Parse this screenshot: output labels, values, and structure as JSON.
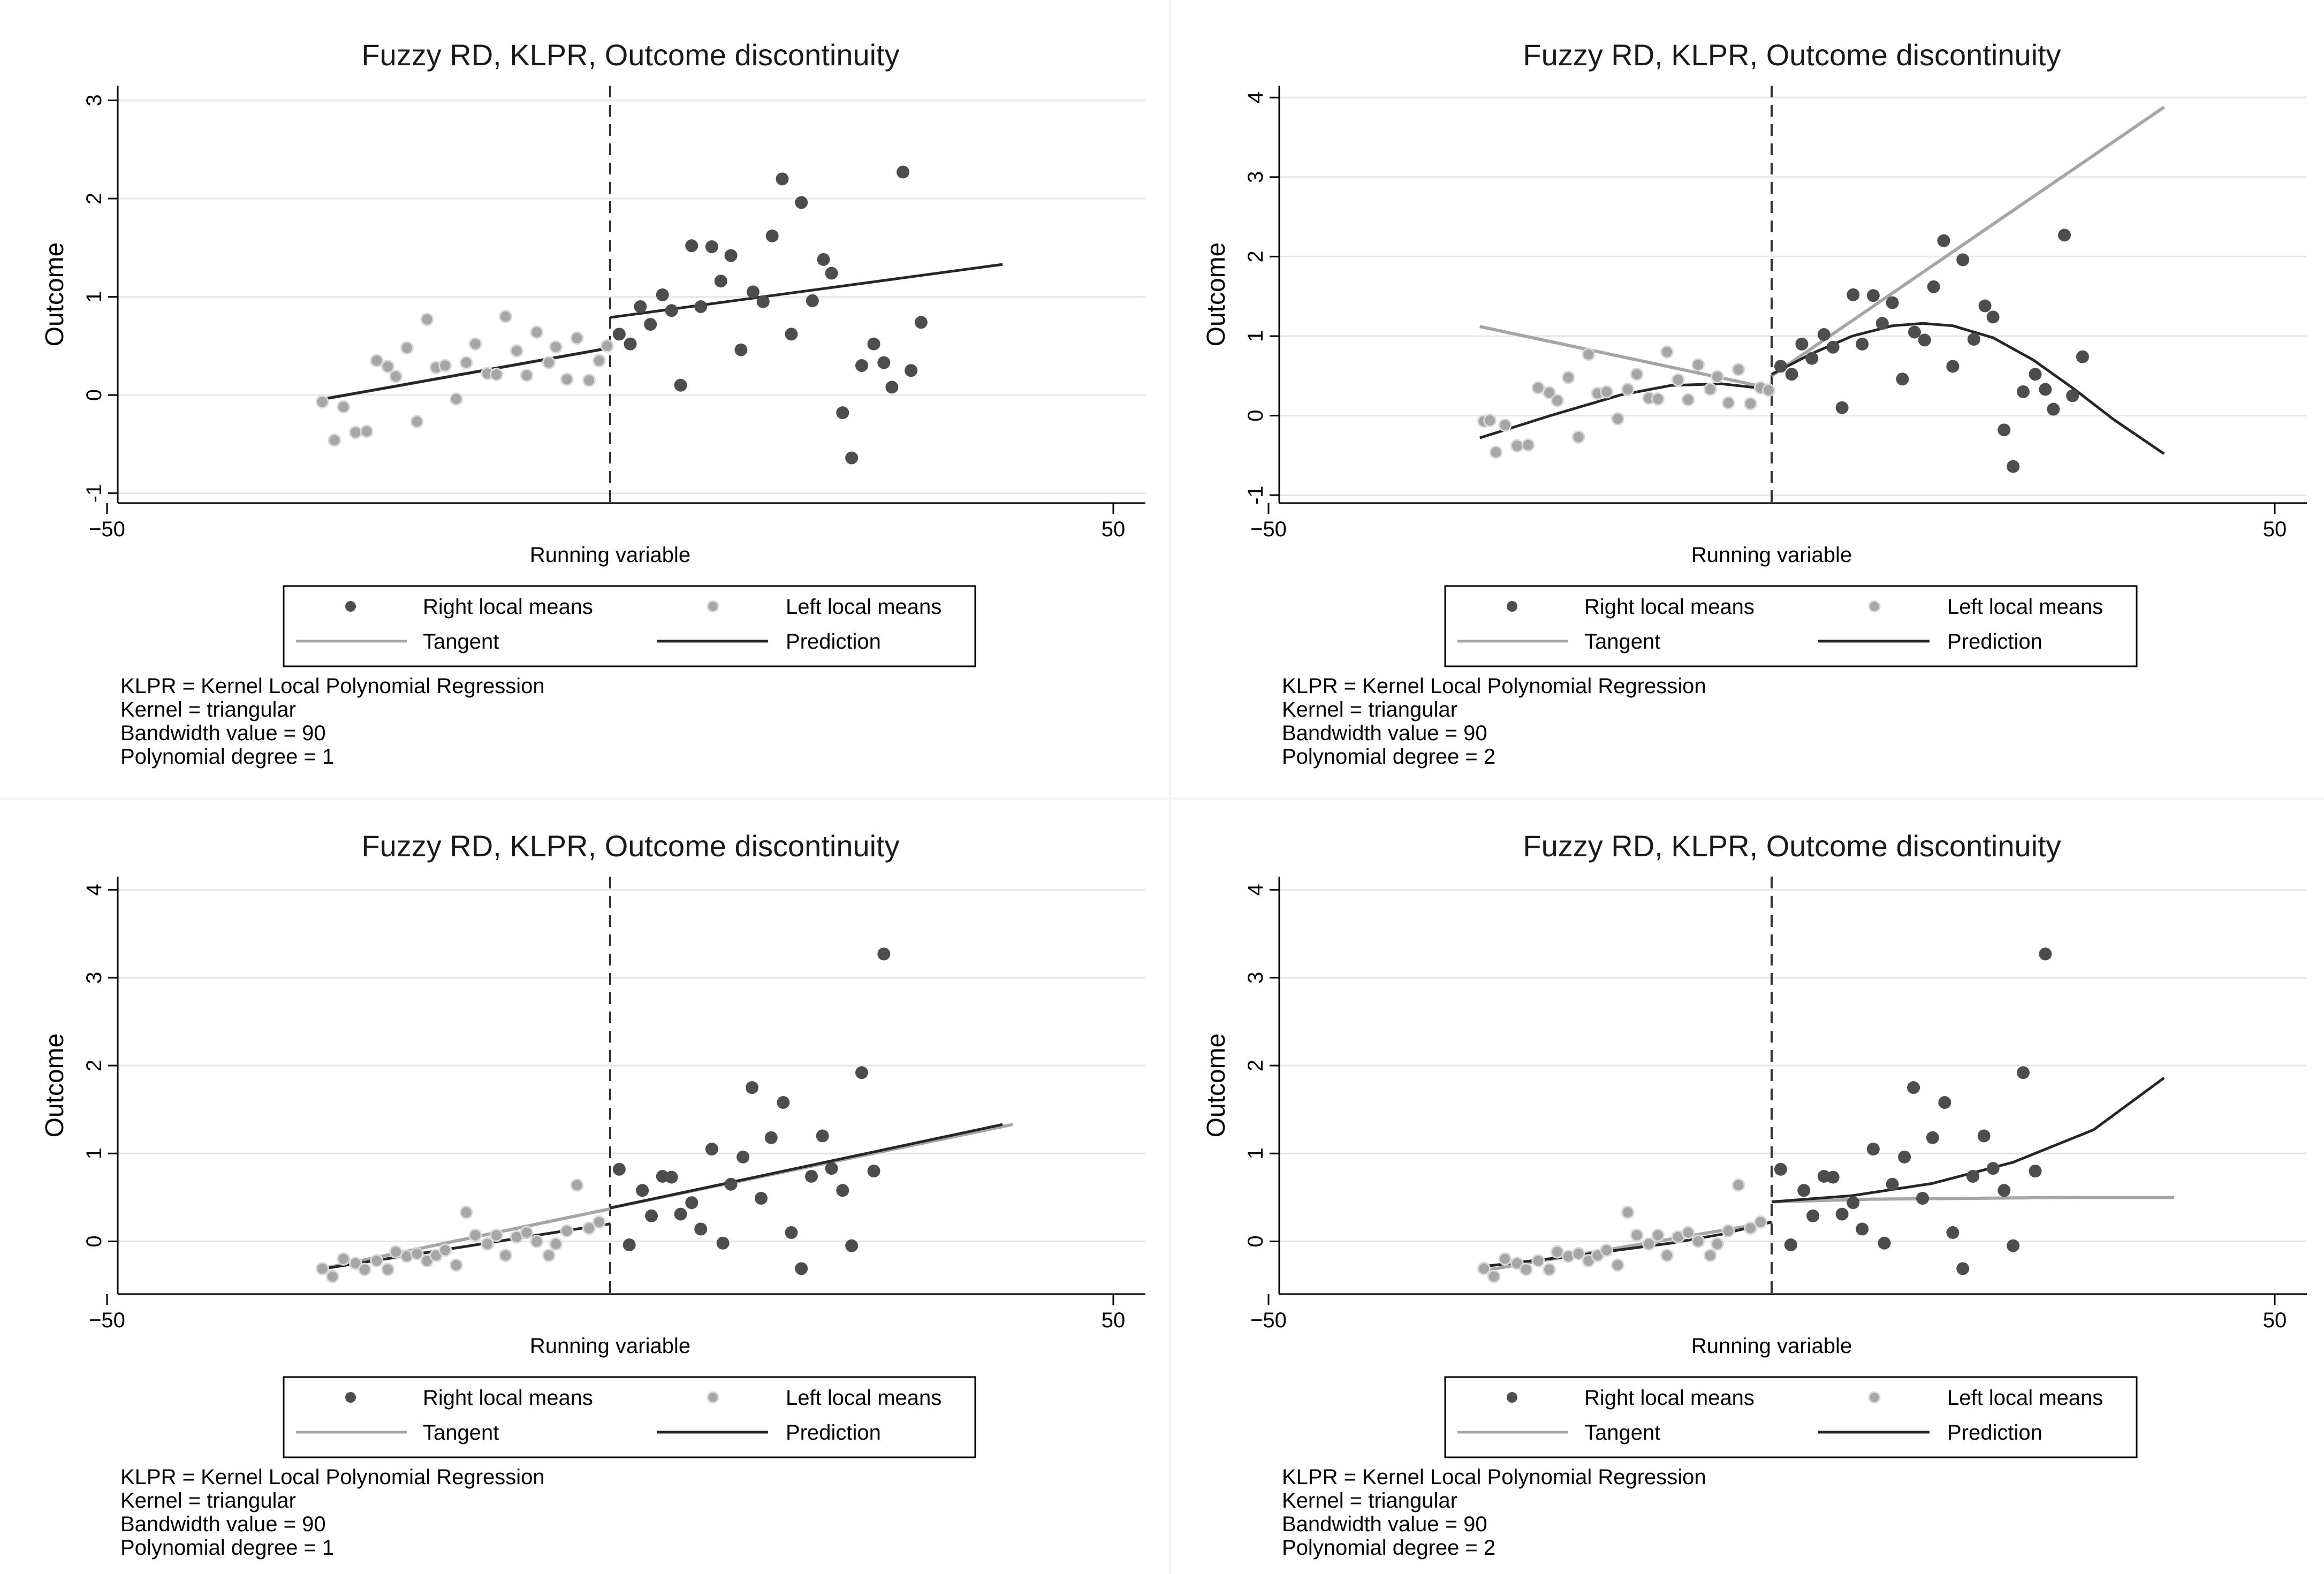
{
  "figure": {
    "legend": {
      "right_means": "Right local means",
      "left_means": "Left local means",
      "tangent": "Tangent",
      "prediction": "Prediction"
    },
    "colors": {
      "right": "#4d4d4d",
      "left": "#a6a6a6",
      "tangent": "#a6a6a6",
      "prediction": "#262626",
      "grid": "#e6e6e6",
      "axis": "#000000"
    }
  },
  "chart_data": [
    {
      "type": "scatter",
      "title": "Fuzzy RD, KLPR, Outcome discontinuity",
      "xlabel": "Running variable",
      "ylabel": "Outcome",
      "xlim": [
        -50,
        50
      ],
      "ylim": [
        -1.1,
        3.15
      ],
      "xticks": [
        -50,
        50
      ],
      "yticks": [
        -1,
        0,
        1,
        2,
        3
      ],
      "cutoff": 0,
      "notes": [
        "KLPR = Kernel Local Polynomial Regression",
        "Kernel = triangular",
        "Bandwidth value = 90",
        "Polynomial degree = 1"
      ],
      "left_points": {
        "x": [
          -28.6,
          -27.4,
          -26.5,
          -25.3,
          -24.2,
          -23.2,
          -22.1,
          -21.3,
          -20.2,
          -19.2,
          -18.2,
          -17.3,
          -16.4,
          -15.3,
          -14.3,
          -13.4,
          -12.2,
          -11.3,
          -10.4,
          -9.3,
          -8.3,
          -7.3,
          -6.1,
          -5.4,
          -4.3,
          -3.3,
          -2.1,
          -1.1,
          -0.3
        ],
        "y": [
          -0.07,
          -0.46,
          -0.12,
          -0.38,
          -0.37,
          0.35,
          0.29,
          0.19,
          0.48,
          -0.27,
          0.77,
          0.28,
          0.3,
          -0.04,
          0.33,
          0.52,
          0.22,
          0.21,
          0.8,
          0.45,
          0.2,
          0.64,
          0.33,
          0.49,
          0.16,
          0.58,
          0.15,
          0.35,
          0.5
        ]
      },
      "right_points": {
        "x": [
          0.9,
          2.0,
          3.0,
          4.0,
          5.2,
          6.1,
          7.0,
          8.1,
          9.0,
          10.1,
          11.0,
          12.0,
          13.0,
          14.2,
          15.2,
          16.1,
          17.1,
          18.0,
          19.0,
          20.1,
          21.2,
          22.0,
          23.1,
          24.0,
          25.0,
          26.2,
          27.2,
          28.0,
          29.1
        ],
        "y": [
          0.62,
          0.52,
          0.9,
          0.72,
          1.02,
          0.86,
          0.1,
          1.52,
          0.9,
          1.51,
          1.16,
          1.42,
          0.46,
          1.05,
          0.95,
          1.62,
          2.2,
          0.62,
          1.96,
          0.96,
          1.38,
          1.24,
          -0.18,
          -0.64,
          0.3,
          0.52,
          0.33,
          0.08,
          2.27
        ]
      },
      "extra_right_points": {
        "x": [
          29.9,
          30.9
        ],
        "y": [
          0.25,
          0.74
        ]
      },
      "tangent_left": [
        [
          -29.0,
          -0.05
        ],
        [
          0,
          0.48
        ]
      ],
      "tangent_right": [],
      "prediction_left": [
        [
          -29.0,
          -0.05
        ],
        [
          0,
          0.48
        ]
      ],
      "prediction_right": [
        [
          0,
          0.79
        ],
        [
          39.0,
          1.33
        ]
      ]
    },
    {
      "type": "scatter",
      "title": "Fuzzy RD, KLPR, Outcome discontinuity",
      "xlabel": "Running variable",
      "ylabel": "Outcome",
      "xlim": [
        -50,
        50
      ],
      "ylim": [
        -1.1,
        4.15
      ],
      "xticks": [
        -50,
        50
      ],
      "yticks": [
        -1,
        0,
        1,
        2,
        3,
        4
      ],
      "cutoff": 0,
      "notes": [
        "KLPR = Kernel Local Polynomial Regression",
        "Kernel = triangular",
        "Bandwidth value = 90",
        "Polynomial degree = 2"
      ],
      "left_points": {
        "x": [
          -28.6,
          -28.0,
          -27.4,
          -26.5,
          -25.3,
          -24.2,
          -23.2,
          -22.1,
          -21.3,
          -20.2,
          -19.2,
          -18.2,
          -17.3,
          -16.4,
          -15.3,
          -14.3,
          -13.4,
          -12.2,
          -11.3,
          -10.4,
          -9.3,
          -8.3,
          -7.3,
          -6.1,
          -5.4,
          -4.3,
          -3.3,
          -2.1,
          -1.1,
          -0.3
        ],
        "y": [
          -0.07,
          -0.06,
          -0.46,
          -0.12,
          -0.38,
          -0.37,
          0.35,
          0.29,
          0.19,
          0.48,
          -0.27,
          0.77,
          0.28,
          0.3,
          -0.04,
          0.33,
          0.52,
          0.22,
          0.21,
          0.8,
          0.45,
          0.2,
          0.64,
          0.33,
          0.49,
          0.16,
          0.58,
          0.15,
          0.35,
          0.32
        ]
      },
      "right_points": {
        "x": [
          0.9,
          2.0,
          3.0,
          4.0,
          5.2,
          6.1,
          7.0,
          8.1,
          9.0,
          10.1,
          11.0,
          12.0,
          13.0,
          14.2,
          15.2,
          16.1,
          17.1,
          18.0,
          19.0,
          20.1,
          21.2,
          22.0,
          23.1,
          24.0,
          25.0,
          26.2,
          27.2,
          28.0,
          29.1
        ],
        "y": [
          0.62,
          0.52,
          0.9,
          0.72,
          1.02,
          0.86,
          0.1,
          1.52,
          0.9,
          1.51,
          1.16,
          1.42,
          0.46,
          1.05,
          0.95,
          1.62,
          2.2,
          0.62,
          1.96,
          0.96,
          1.38,
          1.24,
          -0.18,
          -0.64,
          0.3,
          0.52,
          0.33,
          0.08,
          2.27
        ]
      },
      "extra_right_points": {
        "x": [
          29.9,
          30.9
        ],
        "y": [
          0.25,
          0.74
        ]
      },
      "tangent_left": [
        [
          -29.0,
          1.12
        ],
        [
          0,
          0.34
        ]
      ],
      "tangent_right": [
        [
          0,
          0.5
        ],
        [
          39.0,
          3.88
        ]
      ],
      "prediction_left": [
        [
          -29.0,
          -0.28
        ],
        [
          -22.0,
          0.0
        ],
        [
          -15.0,
          0.26
        ],
        [
          -10.0,
          0.38
        ],
        [
          -5.0,
          0.4
        ],
        [
          0,
          0.33
        ]
      ],
      "prediction_right": [
        [
          0,
          0.52
        ],
        [
          4.0,
          0.78
        ],
        [
          8.0,
          1.0
        ],
        [
          12.0,
          1.13
        ],
        [
          15.0,
          1.16
        ],
        [
          18.0,
          1.13
        ],
        [
          22.0,
          0.98
        ],
        [
          26.0,
          0.7
        ],
        [
          30.0,
          0.34
        ],
        [
          34.0,
          -0.05
        ],
        [
          39.0,
          -0.48
        ]
      ]
    },
    {
      "type": "scatter",
      "title": "Fuzzy RD, KLPR, Outcome discontinuity",
      "xlabel": "Running variable",
      "ylabel": "Outcome",
      "xlim": [
        -50,
        50
      ],
      "ylim": [
        -0.6,
        4.15
      ],
      "xticks": [
        -50,
        50
      ],
      "yticks": [
        0,
        1,
        2,
        3,
        4
      ],
      "cutoff": 0,
      "notes": [
        "KLPR = Kernel Local Polynomial Regression",
        "Kernel = triangular",
        "Bandwidth value = 90",
        "Polynomial degree = 1"
      ],
      "left_points": {
        "x": [
          -28.6,
          -27.6,
          -26.5,
          -25.3,
          -24.4,
          -23.2,
          -22.1,
          -21.3,
          -20.2,
          -19.2,
          -18.2,
          -17.3,
          -16.4,
          -15.3,
          -14.3,
          -13.4,
          -12.2,
          -11.3,
          -10.4,
          -9.3,
          -8.3,
          -7.3,
          -6.1,
          -5.4,
          -4.3,
          -3.3,
          -2.1,
          -1.1
        ],
        "y": [
          -0.31,
          -0.4,
          -0.2,
          -0.25,
          -0.32,
          -0.22,
          -0.32,
          -0.12,
          -0.17,
          -0.14,
          -0.22,
          -0.16,
          -0.1,
          -0.27,
          0.33,
          0.07,
          -0.03,
          0.07,
          -0.16,
          0.05,
          0.1,
          0.0,
          -0.16,
          -0.03,
          0.12,
          0.64,
          0.15,
          0.22
        ]
      },
      "right_points": {
        "x": [
          0.9,
          1.9,
          3.2,
          4.1,
          5.2,
          6.1,
          7.0,
          8.1,
          9.0,
          10.1,
          11.2,
          12.0,
          13.2,
          14.1,
          15.0,
          16.0,
          17.2,
          18.0,
          19.0,
          20.0,
          21.1,
          22.0,
          23.1,
          24.0,
          25.0,
          26.2,
          27.2
        ],
        "y": [
          0.82,
          -0.04,
          0.58,
          0.29,
          0.74,
          0.73,
          0.31,
          0.44,
          0.14,
          1.05,
          -0.02,
          0.65,
          0.96,
          1.75,
          0.49,
          1.18,
          1.58,
          0.1,
          -0.31,
          0.74,
          1.2,
          0.83,
          0.58,
          -0.05,
          1.92,
          0.8,
          3.27
        ]
      },
      "extra_right_points": {
        "x": [],
        "y": []
      },
      "tangent_left": [
        [
          -29.0,
          -0.32
        ],
        [
          0,
          0.37
        ]
      ],
      "tangent_right": [
        [
          0,
          0.38
        ],
        [
          40.0,
          1.33
        ]
      ],
      "prediction_left": [
        [
          -29.0,
          -0.32
        ],
        [
          0,
          0.2
        ]
      ],
      "prediction_right": [
        [
          0,
          0.38
        ],
        [
          39.0,
          1.33
        ]
      ]
    },
    {
      "type": "scatter",
      "title": "Fuzzy RD, KLPR, Outcome discontinuity",
      "xlabel": "Running variable",
      "ylabel": "Outcome",
      "xlim": [
        -50,
        50
      ],
      "ylim": [
        -0.6,
        4.15
      ],
      "xticks": [
        -50,
        50
      ],
      "yticks": [
        0,
        1,
        2,
        3,
        4
      ],
      "cutoff": 0,
      "notes": [
        "KLPR = Kernel Local Polynomial Regression",
        "Kernel = triangular",
        "Bandwidth value = 90",
        "Polynomial degree = 2"
      ],
      "left_points": {
        "x": [
          -28.6,
          -27.6,
          -26.5,
          -25.3,
          -24.4,
          -23.2,
          -22.1,
          -21.3,
          -20.2,
          -19.2,
          -18.2,
          -17.3,
          -16.4,
          -15.3,
          -14.3,
          -13.4,
          -12.2,
          -11.3,
          -10.4,
          -9.3,
          -8.3,
          -7.3,
          -6.1,
          -5.4,
          -4.3,
          -3.3,
          -2.1,
          -1.1
        ],
        "y": [
          -0.31,
          -0.4,
          -0.2,
          -0.25,
          -0.32,
          -0.22,
          -0.32,
          -0.12,
          -0.17,
          -0.14,
          -0.22,
          -0.16,
          -0.1,
          -0.27,
          0.33,
          0.07,
          -0.03,
          0.07,
          -0.16,
          0.05,
          0.1,
          0.0,
          -0.16,
          -0.03,
          0.12,
          0.64,
          0.15,
          0.22
        ]
      },
      "right_points": {
        "x": [
          0.9,
          1.9,
          3.2,
          4.1,
          5.2,
          6.1,
          7.0,
          8.1,
          9.0,
          10.1,
          11.2,
          12.0,
          13.2,
          14.1,
          15.0,
          16.0,
          17.2,
          18.0,
          19.0,
          20.0,
          21.1,
          22.0,
          23.1,
          24.0,
          25.0,
          26.2,
          27.2
        ],
        "y": [
          0.82,
          -0.04,
          0.58,
          0.29,
          0.74,
          0.73,
          0.31,
          0.44,
          0.14,
          1.05,
          -0.02,
          0.65,
          0.96,
          1.75,
          0.49,
          1.18,
          1.58,
          0.1,
          -0.31,
          0.74,
          1.2,
          0.83,
          0.58,
          -0.05,
          1.92,
          0.8,
          3.27
        ]
      },
      "extra_right_points": {
        "x": [],
        "y": []
      },
      "tangent_left": [
        [
          -29.0,
          -0.34
        ],
        [
          0,
          0.22
        ]
      ],
      "tangent_right": [
        [
          0,
          0.45
        ],
        [
          10.0,
          0.48
        ],
        [
          20.0,
          0.49
        ],
        [
          30.0,
          0.5
        ],
        [
          40.0,
          0.5
        ]
      ],
      "prediction_left": [
        [
          -29.0,
          -0.29
        ],
        [
          -20.0,
          -0.17
        ],
        [
          -10.0,
          -0.02
        ],
        [
          -5.0,
          0.08
        ],
        [
          0,
          0.22
        ]
      ],
      "prediction_right": [
        [
          0,
          0.45
        ],
        [
          8.0,
          0.52
        ],
        [
          16.0,
          0.66
        ],
        [
          24.0,
          0.9
        ],
        [
          32.0,
          1.27
        ],
        [
          39.0,
          1.86
        ]
      ]
    }
  ]
}
